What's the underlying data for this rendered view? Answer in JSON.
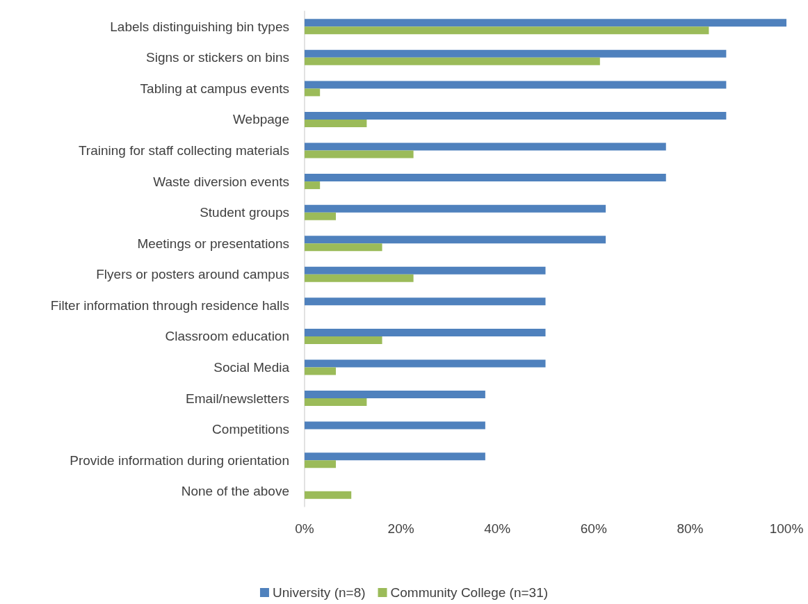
{
  "chart_data": {
    "type": "bar",
    "orientation": "horizontal",
    "categories": [
      "Labels distinguishing bin types",
      "Signs or stickers on bins",
      "Tabling at campus events",
      "Webpage",
      "Training for staff collecting materials",
      "Waste diversion events",
      "Student groups",
      "Meetings or presentations",
      "Flyers or posters around campus",
      "Filter information through residence halls",
      "Classroom education",
      "Social Media",
      "Email/newsletters",
      "Competitions",
      "Provide information during orientation",
      "None of the above"
    ],
    "series": [
      {
        "name": "University (n=8)",
        "color": "#4f81bd",
        "values": [
          100,
          87.5,
          87.5,
          87.5,
          75,
          75,
          62.5,
          62.5,
          50,
          50,
          50,
          50,
          37.5,
          37.5,
          37.5,
          0
        ]
      },
      {
        "name": "Community College (n=31)",
        "color": "#9bbb59",
        "values": [
          83.9,
          61.3,
          3.2,
          12.9,
          22.6,
          3.2,
          6.5,
          16.1,
          22.6,
          0,
          16.1,
          6.5,
          12.9,
          0,
          6.5,
          9.7
        ]
      }
    ],
    "xlim": [
      0,
      100
    ],
    "xticks": [
      {
        "value": 0,
        "label": "0%"
      },
      {
        "value": 20,
        "label": "20%"
      },
      {
        "value": 40,
        "label": "40%"
      },
      {
        "value": 60,
        "label": "60%"
      },
      {
        "value": 80,
        "label": "80%"
      },
      {
        "value": 100,
        "label": "100%"
      }
    ],
    "grid": false,
    "legend": "bottom"
  }
}
